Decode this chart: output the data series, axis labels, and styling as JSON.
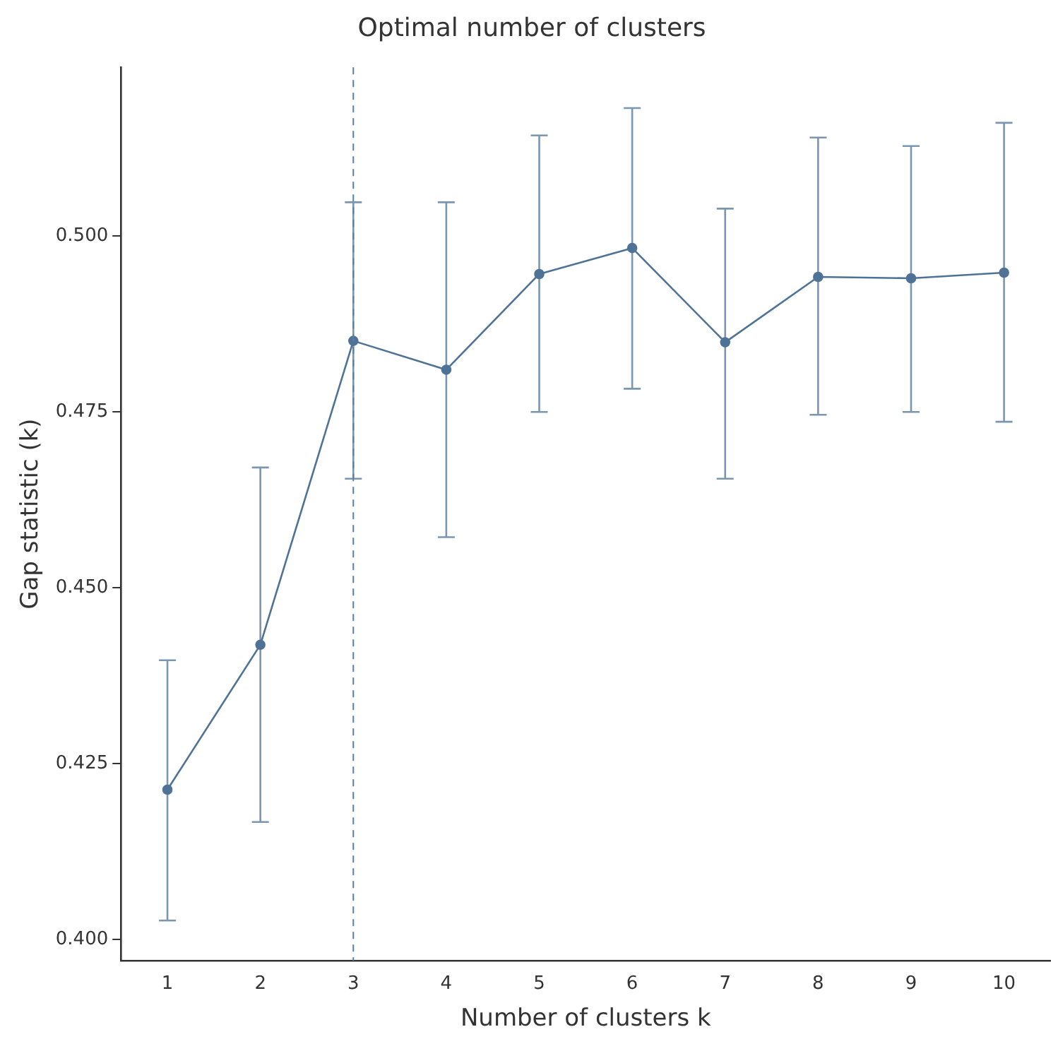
{
  "chart_data": {
    "type": "line",
    "title": "Optimal number of clusters",
    "xlabel": "Number of clusters k",
    "ylabel": "Gap statistic (k)",
    "categories": [
      "1",
      "2",
      "3",
      "4",
      "5",
      "6",
      "7",
      "8",
      "9",
      "10"
    ],
    "series": [
      {
        "color": "#4f7396",
        "values": [
          0.4213,
          0.4419,
          0.4851,
          0.481,
          0.4946,
          0.4983,
          0.4849,
          0.4942,
          0.494,
          0.4948
        ],
        "errors": [
          [
            0.4027,
            0.4397
          ],
          [
            0.4167,
            0.4671
          ],
          [
            0.4655,
            0.5048
          ],
          [
            0.4572,
            0.5048
          ],
          [
            0.475,
            0.5143
          ],
          [
            0.4783,
            0.5182
          ],
          [
            0.4655,
            0.5039
          ],
          [
            0.4746,
            0.514
          ],
          [
            0.475,
            0.5128
          ],
          [
            0.4736,
            0.5161
          ]
        ]
      }
    ],
    "ylim": [
      0.397,
      0.524
    ],
    "yticks": [
      {
        "value": 0.4,
        "label": "0.400"
      },
      {
        "value": 0.425,
        "label": "0.425"
      },
      {
        "value": 0.45,
        "label": "0.450"
      },
      {
        "value": 0.475,
        "label": "0.475"
      },
      {
        "value": 0.5,
        "label": "0.500"
      }
    ],
    "ref_lines": [
      {
        "axis": "x",
        "value": "3",
        "color": "#5b7fa3",
        "line_style": "dashed"
      }
    ],
    "marker": "circle",
    "line_style": "solid",
    "grid": false,
    "legend": false
  }
}
